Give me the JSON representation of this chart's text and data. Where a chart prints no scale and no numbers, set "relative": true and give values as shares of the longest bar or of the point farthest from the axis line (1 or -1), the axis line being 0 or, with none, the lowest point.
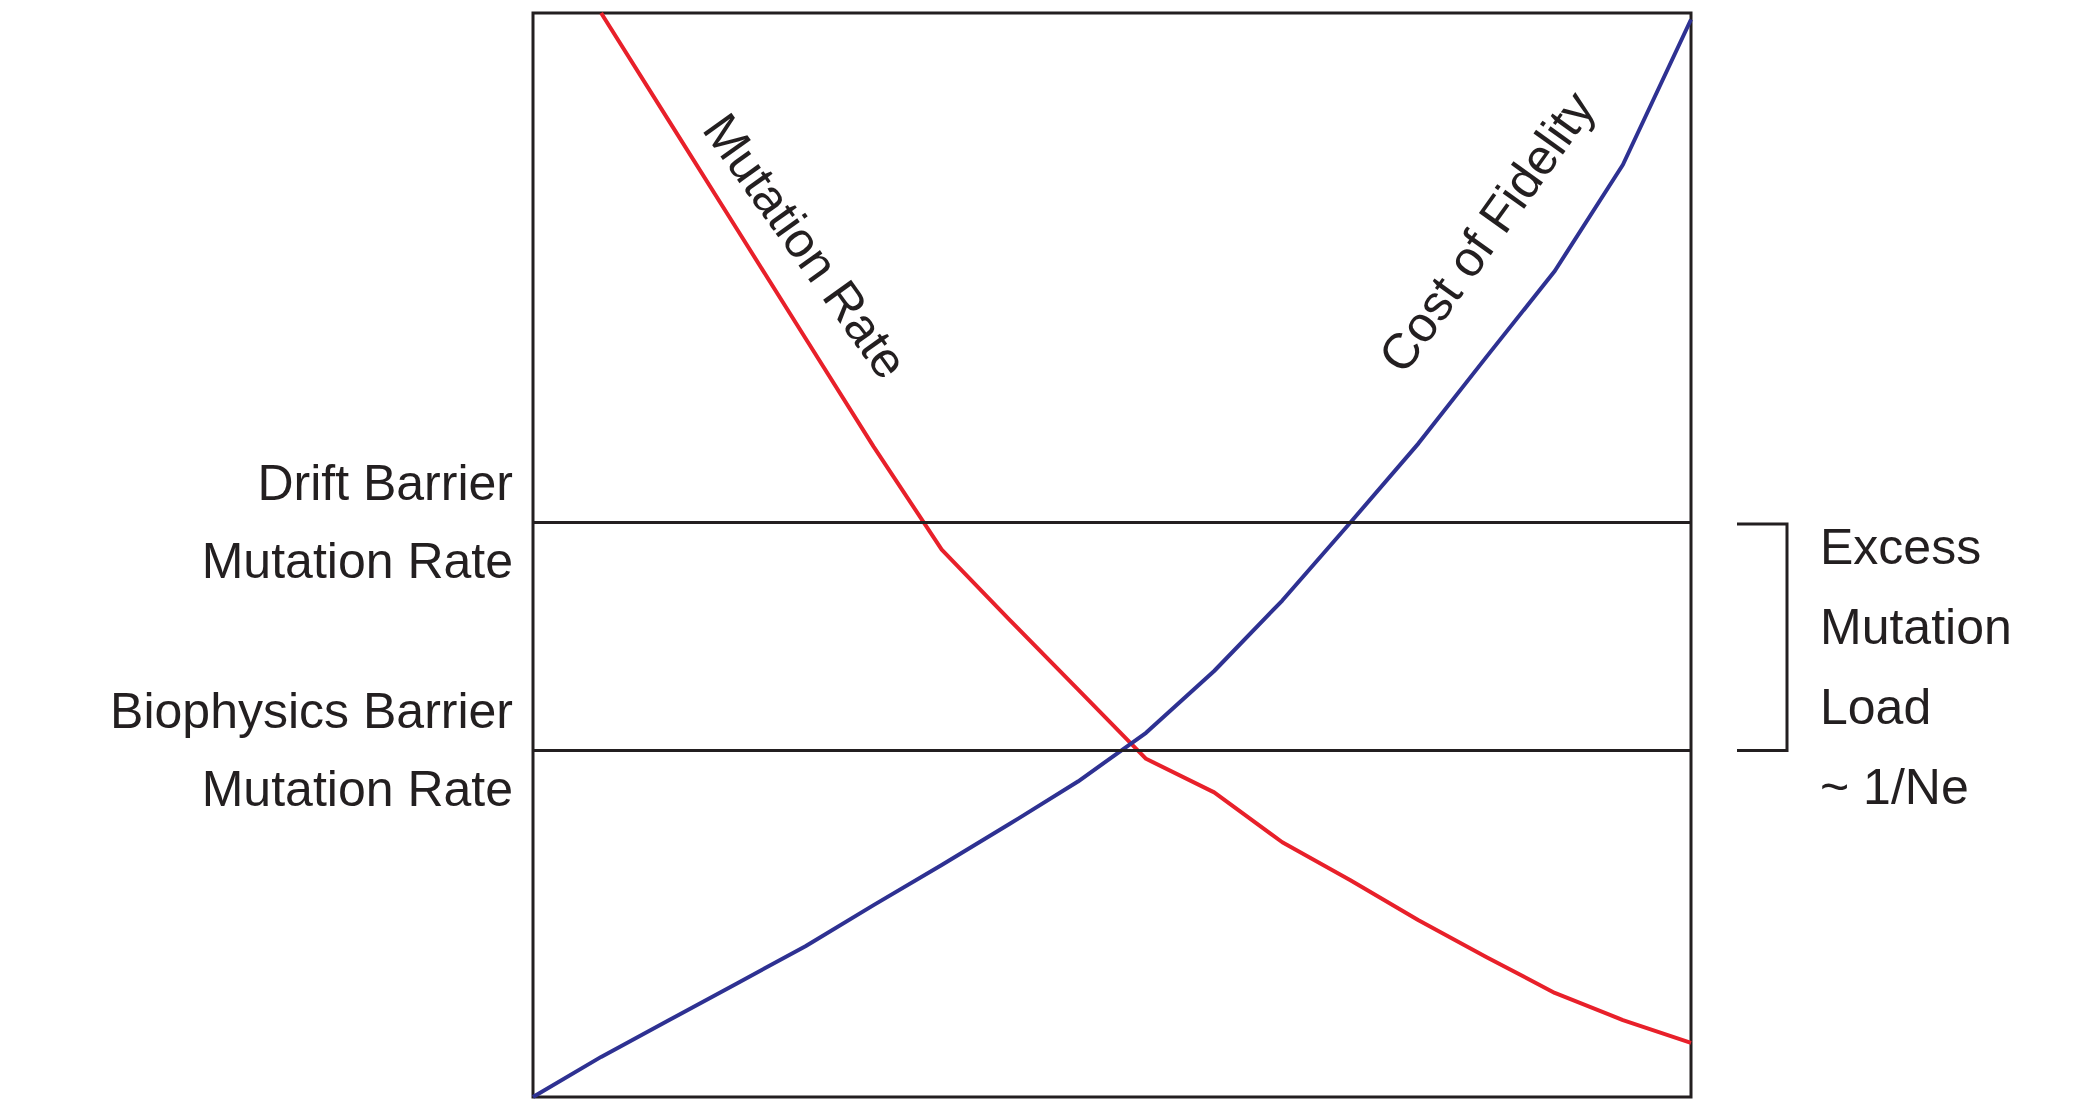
{
  "chart_data": {
    "type": "line",
    "relative": true,
    "grid": false,
    "categories": [
      null,
      null,
      null,
      null,
      null,
      null,
      null,
      null,
      null,
      null,
      null,
      null,
      null,
      null,
      null,
      null,
      null,
      null
    ],
    "series": [
      {
        "name": "Mutation Rate",
        "color": "#e8202a",
        "values": [
          null,
          1.0,
          0.9,
          0.8,
          0.7,
          0.6,
          0.505,
          0.44,
          0.376,
          0.312,
          0.281,
          0.235,
          0.2,
          0.163,
          0.129,
          0.096,
          0.071,
          0.05
        ]
      },
      {
        "name": "Cost of Fidelity",
        "color": "#2e3192",
        "values": [
          0,
          0.037,
          0.071,
          0.105,
          0.139,
          0.177,
          0.214,
          0.252,
          0.291,
          0.336,
          0.393,
          0.458,
          0.53,
          0.603,
          0.683,
          0.762,
          0.86,
          0.994
        ]
      }
    ],
    "ref_lines": [
      {
        "axis": "y",
        "value": 0.529,
        "label": "Drift Barrier\nMutation Rate",
        "color": "#231f20"
      },
      {
        "axis": "y",
        "value": 0.32,
        "label": "Biophysics Barrier\nMutation Rate",
        "color": "#231f20"
      }
    ],
    "annotations": [
      "Excess\nMutation\nLoad\n~ 1/Ne"
    ]
  }
}
